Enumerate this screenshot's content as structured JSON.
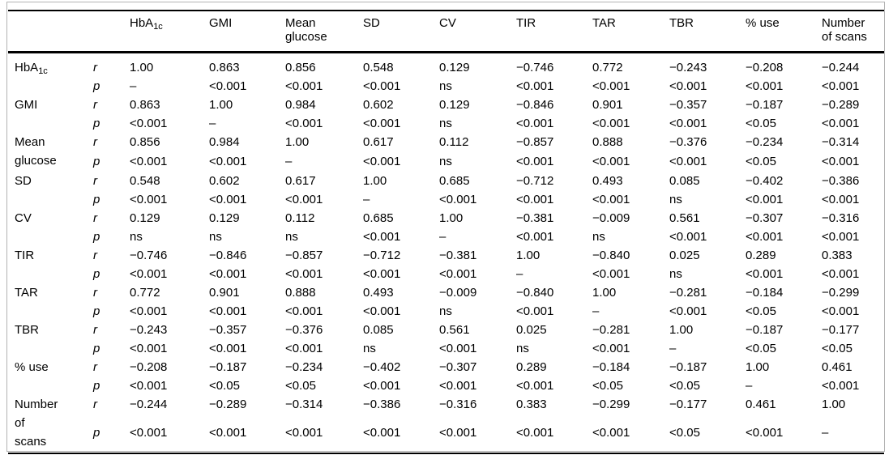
{
  "figure": {
    "kind": "correlation-matrix-table"
  },
  "matrix": {
    "stat_r": "r",
    "stat_p": "p",
    "headers": [
      {
        "key": "hba1c",
        "label": "HbA",
        "sub": "1c"
      },
      {
        "key": "gmi",
        "label": "GMI"
      },
      {
        "key": "mean-glucose",
        "label": "Mean glucose"
      },
      {
        "key": "sd",
        "label": "SD"
      },
      {
        "key": "cv",
        "label": "CV"
      },
      {
        "key": "tir",
        "label": "TIR"
      },
      {
        "key": "tar",
        "label": "TAR"
      },
      {
        "key": "tbr",
        "label": "TBR"
      },
      {
        "key": "pct-use",
        "label": "% use"
      },
      {
        "key": "num-scans",
        "label": "Number of scans"
      }
    ],
    "rows": [
      {
        "key": "hba1c",
        "label": "HbA",
        "sub": "1c",
        "r": [
          "1.00",
          "0.863",
          "0.856",
          "0.548",
          "0.129",
          "−0.746",
          "0.772",
          "−0.243",
          "−0.208",
          "−0.244"
        ],
        "p": [
          "–",
          "<0.001",
          "<0.001",
          "<0.001",
          "ns",
          "<0.001",
          "<0.001",
          "<0.001",
          "<0.001",
          "<0.001"
        ]
      },
      {
        "key": "gmi",
        "label": "GMI",
        "r": [
          "0.863",
          "1.00",
          "0.984",
          "0.602",
          "0.129",
          "−0.846",
          "0.901",
          "−0.357",
          "−0.187",
          "−0.289"
        ],
        "p": [
          "<0.001",
          "–",
          "<0.001",
          "<0.001",
          "ns",
          "<0.001",
          "<0.001",
          "<0.001",
          "<0.05",
          "<0.001"
        ]
      },
      {
        "key": "mean-glucose",
        "label": "Mean glucose",
        "r": [
          "0.856",
          "0.984",
          "1.00",
          "0.617",
          "0.112",
          "−0.857",
          "0.888",
          "−0.376",
          "−0.234",
          "−0.314"
        ],
        "p": [
          "<0.001",
          "<0.001",
          "–",
          "<0.001",
          "ns",
          "<0.001",
          "<0.001",
          "<0.001",
          "<0.05",
          "<0.001"
        ]
      },
      {
        "key": "sd",
        "label": "SD",
        "r": [
          "0.548",
          "0.602",
          "0.617",
          "1.00",
          "0.685",
          "−0.712",
          "0.493",
          "0.085",
          "−0.402",
          "−0.386"
        ],
        "p": [
          "<0.001",
          "<0.001",
          "<0.001",
          "–",
          "<0.001",
          "<0.001",
          "<0.001",
          "ns",
          "<0.001",
          "<0.001"
        ]
      },
      {
        "key": "cv",
        "label": "CV",
        "r": [
          "0.129",
          "0.129",
          "0.112",
          "0.685",
          "1.00",
          "−0.381",
          "−0.009",
          "0.561",
          "−0.307",
          "−0.316"
        ],
        "p": [
          "ns",
          "ns",
          "ns",
          "<0.001",
          "–",
          "<0.001",
          "ns",
          "<0.001",
          "<0.001",
          "<0.001"
        ]
      },
      {
        "key": "tir",
        "label": "TIR",
        "r": [
          "−0.746",
          "−0.846",
          "−0.857",
          "−0.712",
          "−0.381",
          "1.00",
          "−0.840",
          "0.025",
          "0.289",
          "0.383"
        ],
        "p": [
          "<0.001",
          "<0.001",
          "<0.001",
          "<0.001",
          "<0.001",
          "–",
          "<0.001",
          "ns",
          "<0.001",
          "<0.001"
        ]
      },
      {
        "key": "tar",
        "label": "TAR",
        "r": [
          "0.772",
          "0.901",
          "0.888",
          "0.493",
          "−0.009",
          "−0.840",
          "1.00",
          "−0.281",
          "−0.184",
          "−0.299"
        ],
        "p": [
          "<0.001",
          "<0.001",
          "<0.001",
          "<0.001",
          "ns",
          "<0.001",
          "–",
          "<0.001",
          "<0.05",
          "<0.001"
        ]
      },
      {
        "key": "tbr",
        "label": "TBR",
        "r": [
          "−0.243",
          "−0.357",
          "−0.376",
          "0.085",
          "0.561",
          "0.025",
          "−0.281",
          "1.00",
          "−0.187",
          "−0.177"
        ],
        "p": [
          "<0.001",
          "<0.001",
          "<0.001",
          "ns",
          "<0.001",
          "ns",
          "<0.001",
          "–",
          "<0.05",
          "<0.05"
        ]
      },
      {
        "key": "pct-use",
        "label": "% use",
        "r": [
          "−0.208",
          "−0.187",
          "−0.234",
          "−0.402",
          "−0.307",
          "0.289",
          "−0.184",
          "−0.187",
          "1.00",
          "0.461"
        ],
        "p": [
          "<0.001",
          "<0.05",
          "<0.05",
          "<0.001",
          "<0.001",
          "<0.001",
          "<0.05",
          "<0.05",
          "–",
          "<0.001"
        ]
      },
      {
        "key": "num-scans",
        "label": "Number of scans",
        "r": [
          "−0.244",
          "−0.289",
          "−0.314",
          "−0.386",
          "−0.316",
          "0.383",
          "−0.299",
          "−0.177",
          "0.461",
          "1.00"
        ],
        "p": [
          "<0.001",
          "<0.001",
          "<0.001",
          "<0.001",
          "<0.001",
          "<0.001",
          "<0.001",
          "<0.05",
          "<0.001",
          "–"
        ]
      }
    ]
  }
}
